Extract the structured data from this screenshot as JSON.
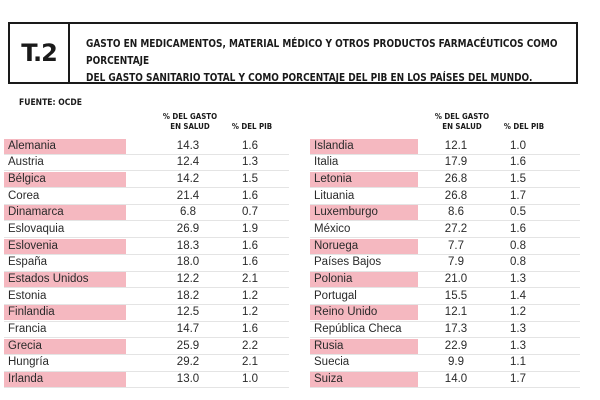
{
  "header": {
    "code": "T.2",
    "title_line1": "GASTO EN MEDICAMENTOS, MATERIAL MÉDICO Y OTROS PRODUCTOS FARMACÉUTICOS COMO PORCENTAJE",
    "title_line2": "DEL GASTO SANITARIO TOTAL Y COMO PORCENTAJE DEL PIB EN LOS PAÍSES DEL MUNDO."
  },
  "source": "FUENTE: OCDE",
  "columns": {
    "gasto_l1": "% DEL GASTO",
    "gasto_l2": "EN SALUD",
    "pib": "% DEL PIB"
  },
  "colors": {
    "highlight": "#f5b8c0"
  },
  "left_rows": [
    {
      "country": "Alemania",
      "gasto": "14.3",
      "pib": "1.6",
      "highlight": true
    },
    {
      "country": "Austria",
      "gasto": "12.4",
      "pib": "1.3",
      "highlight": false
    },
    {
      "country": "Bélgica",
      "gasto": "14.2",
      "pib": "1.5",
      "highlight": true
    },
    {
      "country": "Corea",
      "gasto": "21.4",
      "pib": "1.6",
      "highlight": false
    },
    {
      "country": "Dinamarca",
      "gasto": "6.8",
      "pib": "0.7",
      "highlight": true
    },
    {
      "country": "Eslovaquia",
      "gasto": "26.9",
      "pib": "1.9",
      "highlight": false
    },
    {
      "country": "Eslovenia",
      "gasto": "18.3",
      "pib": "1.6",
      "highlight": true
    },
    {
      "country": "España",
      "gasto": "18.0",
      "pib": "1.6",
      "highlight": false
    },
    {
      "country": "Estados Unidos",
      "gasto": "12.2",
      "pib": "2.1",
      "highlight": true
    },
    {
      "country": "Estonia",
      "gasto": "18.2",
      "pib": "1.2",
      "highlight": false
    },
    {
      "country": "Finlandia",
      "gasto": "12.5",
      "pib": "1.2",
      "highlight": true
    },
    {
      "country": "Francia",
      "gasto": "14.7",
      "pib": "1.6",
      "highlight": false
    },
    {
      "country": "Grecia",
      "gasto": "25.9",
      "pib": "2.2",
      "highlight": true
    },
    {
      "country": "Hungría",
      "gasto": "29.2",
      "pib": "2.1",
      "highlight": false
    },
    {
      "country": "Irlanda",
      "gasto": "13.0",
      "pib": "1.0",
      "highlight": true
    }
  ],
  "right_rows": [
    {
      "country": "Islandia",
      "gasto": "12.1",
      "pib": "1.0",
      "highlight": true
    },
    {
      "country": "Italia",
      "gasto": "17.9",
      "pib": "1.6",
      "highlight": false
    },
    {
      "country": "Letonia",
      "gasto": "26.8",
      "pib": "1.5",
      "highlight": true
    },
    {
      "country": "Lituania",
      "gasto": "26.8",
      "pib": "1.7",
      "highlight": false
    },
    {
      "country": "Luxemburgo",
      "gasto": "8.6",
      "pib": "0.5",
      "highlight": true
    },
    {
      "country": "México",
      "gasto": "27.2",
      "pib": "1.6",
      "highlight": false
    },
    {
      "country": "Noruega",
      "gasto": "7.7",
      "pib": "0.8",
      "highlight": true
    },
    {
      "country": "Países Bajos",
      "gasto": "7.9",
      "pib": "0.8",
      "highlight": false
    },
    {
      "country": "Polonia",
      "gasto": "21.0",
      "pib": "1.3",
      "highlight": true
    },
    {
      "country": "Portugal",
      "gasto": "15.5",
      "pib": "1.4",
      "highlight": false
    },
    {
      "country": "Reino Unido",
      "gasto": "12.1",
      "pib": "1.2",
      "highlight": true
    },
    {
      "country": "República Checa",
      "gasto": "17.3",
      "pib": "1.3",
      "highlight": false
    },
    {
      "country": "Rusia",
      "gasto": "22.9",
      "pib": "1.3",
      "highlight": true
    },
    {
      "country": "Suecia",
      "gasto": "9.9",
      "pib": "1.1",
      "highlight": false
    },
    {
      "country": "Suiza",
      "gasto": "14.0",
      "pib": "1.7",
      "highlight": true
    }
  ]
}
